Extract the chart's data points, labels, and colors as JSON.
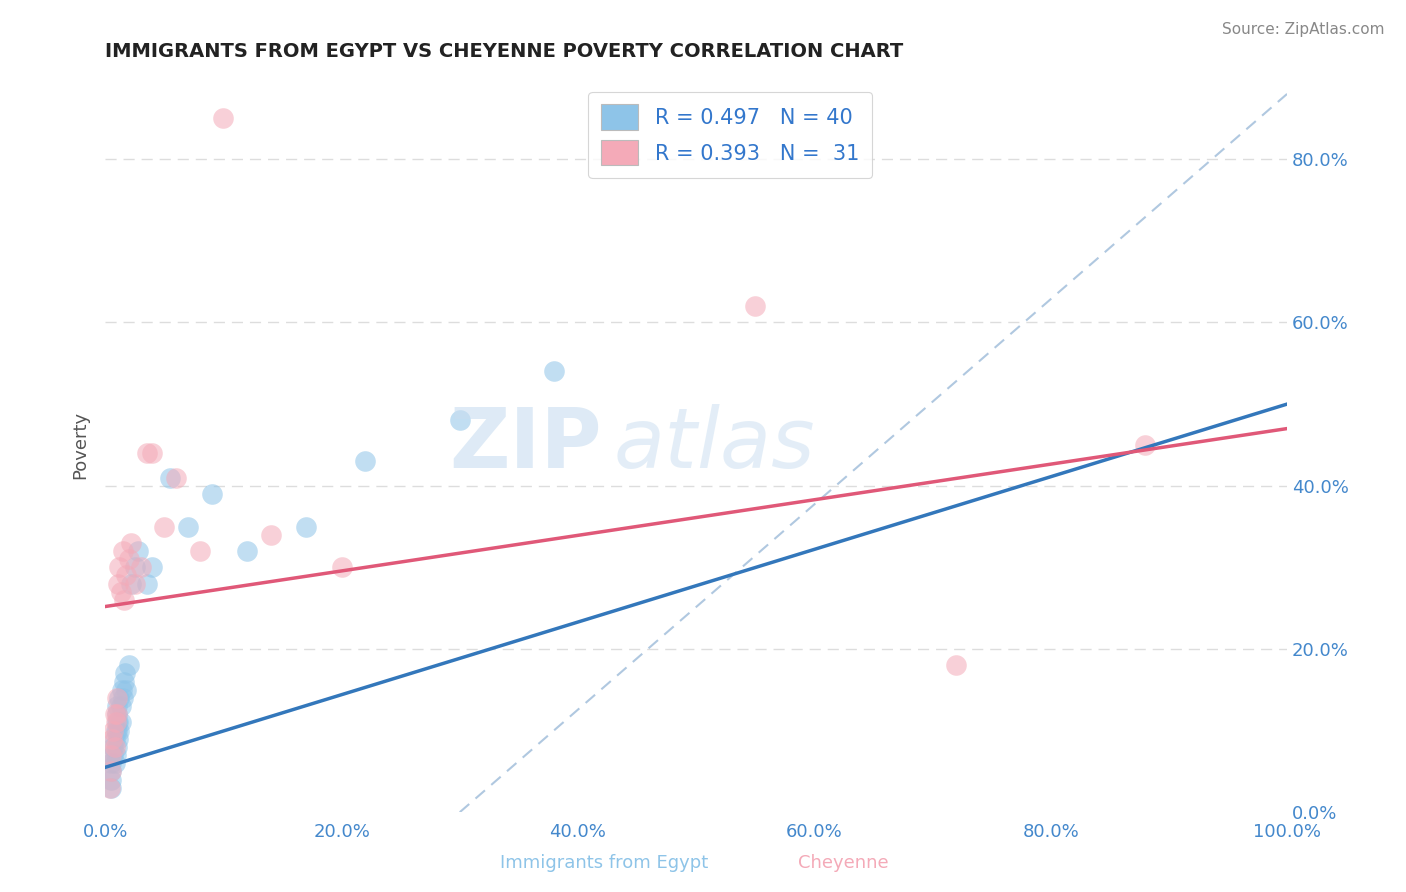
{
  "title": "IMMIGRANTS FROM EGYPT VS CHEYENNE POVERTY CORRELATION CHART",
  "source": "Source: ZipAtlas.com",
  "xlabel_blue": "Immigrants from Egypt",
  "xlabel_pink": "Cheyenne",
  "ylabel": "Poverty",
  "xlim": [
    0.0,
    1.0
  ],
  "ylim": [
    0.0,
    0.9
  ],
  "x_ticks": [
    0.0,
    0.2,
    0.4,
    0.6,
    0.8,
    1.0
  ],
  "x_tick_labels": [
    "0.0%",
    "20.0%",
    "40.0%",
    "60.0%",
    "80.0%",
    "100.0%"
  ],
  "y_ticks": [
    0.0,
    0.2,
    0.4,
    0.6,
    0.8
  ],
  "y_tick_labels_right": [
    "0.0%",
    "20.0%",
    "40.0%",
    "60.0%",
    "80.0%"
  ],
  "legend_blue_R": "0.497",
  "legend_blue_N": "40",
  "legend_pink_R": "0.393",
  "legend_pink_N": "31",
  "watermark_zip": "ZIP",
  "watermark_atlas": "atlas",
  "blue_color": "#8ec4e8",
  "pink_color": "#f4aab8",
  "blue_line_color": "#3377bb",
  "pink_line_color": "#e05878",
  "dashed_line_color": "#b0c8e0",
  "blue_line_x0": 0.0,
  "blue_line_y0": 0.055,
  "blue_line_x1": 1.0,
  "blue_line_y1": 0.5,
  "pink_line_x0": 0.0,
  "pink_line_y0": 0.252,
  "pink_line_x1": 1.0,
  "pink_line_y1": 0.47,
  "dash_line_x0": 0.3,
  "dash_line_y0": 0.0,
  "dash_line_x1": 1.0,
  "dash_line_y1": 0.88,
  "blue_scatter_x": [
    0.005,
    0.005,
    0.005,
    0.005,
    0.007,
    0.007,
    0.008,
    0.008,
    0.009,
    0.009,
    0.01,
    0.01,
    0.01,
    0.01,
    0.01,
    0.011,
    0.011,
    0.012,
    0.012,
    0.013,
    0.013,
    0.014,
    0.015,
    0.016,
    0.017,
    0.018,
    0.02,
    0.022,
    0.025,
    0.028,
    0.035,
    0.04,
    0.055,
    0.07,
    0.09,
    0.12,
    0.17,
    0.22,
    0.3,
    0.38
  ],
  "blue_scatter_y": [
    0.03,
    0.04,
    0.05,
    0.06,
    0.07,
    0.08,
    0.06,
    0.09,
    0.07,
    0.1,
    0.08,
    0.1,
    0.11,
    0.12,
    0.13,
    0.09,
    0.11,
    0.1,
    0.14,
    0.11,
    0.13,
    0.15,
    0.14,
    0.16,
    0.17,
    0.15,
    0.18,
    0.28,
    0.3,
    0.32,
    0.28,
    0.3,
    0.41,
    0.35,
    0.39,
    0.32,
    0.35,
    0.43,
    0.48,
    0.54
  ],
  "pink_scatter_x": [
    0.004,
    0.005,
    0.005,
    0.006,
    0.007,
    0.008,
    0.008,
    0.009,
    0.01,
    0.01,
    0.011,
    0.012,
    0.013,
    0.015,
    0.016,
    0.018,
    0.02,
    0.022,
    0.025,
    0.03,
    0.035,
    0.04,
    0.05,
    0.06,
    0.08,
    0.1,
    0.14,
    0.2,
    0.55,
    0.72,
    0.88
  ],
  "pink_scatter_y": [
    0.03,
    0.05,
    0.07,
    0.09,
    0.1,
    0.08,
    0.12,
    0.11,
    0.12,
    0.14,
    0.28,
    0.3,
    0.27,
    0.32,
    0.26,
    0.29,
    0.31,
    0.33,
    0.28,
    0.3,
    0.44,
    0.44,
    0.35,
    0.41,
    0.32,
    0.85,
    0.34,
    0.3,
    0.62,
    0.18,
    0.45
  ],
  "background_color": "#ffffff",
  "grid_color": "#dddddd"
}
